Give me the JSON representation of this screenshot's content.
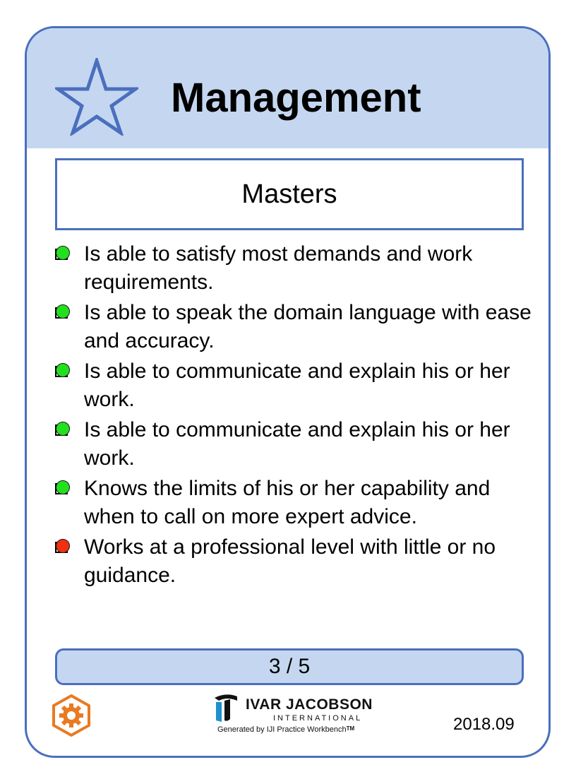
{
  "card": {
    "title": "Management",
    "level": "Masters",
    "checklist": [
      {
        "text": "Is able to satisfy most demands and work requirements.",
        "status": "achieved"
      },
      {
        "text": "Is able to speak the domain language with ease and accuracy.",
        "status": "achieved"
      },
      {
        "text": "Is able to communicate and explain his or her work.",
        "status": "achieved"
      },
      {
        "text": "Is able to communicate and explain his or her work.",
        "status": "achieved"
      },
      {
        "text": "Knows the limits of his or her capability and when to call on more expert advice.",
        "status": "achieved"
      },
      {
        "text": "Works at a professional level with little or no guidance.",
        "status": "not-achieved"
      }
    ],
    "progress": "3 / 5",
    "logo": {
      "name": "IVAR JACOBSON",
      "subtitle": "INTERNATIONAL",
      "generated_by": "Generated by IJI Practice Workbench",
      "trademark": "TM"
    },
    "date": "2018.09",
    "icons": {
      "header": "star-icon",
      "footer": "gear-icon"
    }
  },
  "colors": {
    "accent": "#4a6fbe",
    "header_bg": "#c5d7f0",
    "achieved": "#22e01e",
    "not_achieved": "#f03010",
    "gear": "#e87a22"
  }
}
